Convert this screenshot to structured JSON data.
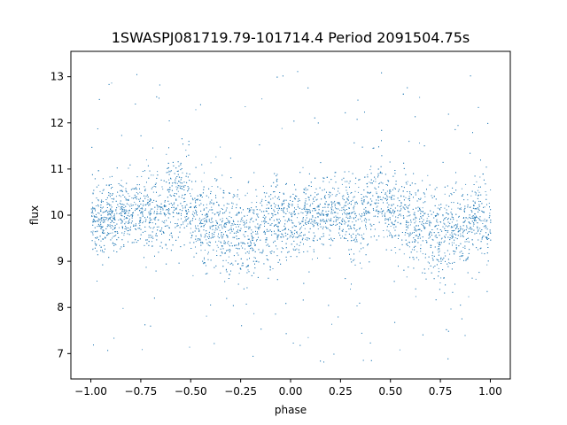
{
  "chart_data": {
    "type": "scatter",
    "title": "1SWASPJ081719.79-101714.4 Period 2091504.75s",
    "xlabel": "phase",
    "ylabel": "flux",
    "xlim": [
      -1.1,
      1.1
    ],
    "ylim": [
      6.45,
      13.55
    ],
    "x_ticks": [
      -1.0,
      -0.75,
      -0.5,
      -0.25,
      0.0,
      0.25,
      0.5,
      0.75,
      1.0
    ],
    "x_tick_labels": [
      "−1.00",
      "−0.75",
      "−0.50",
      "−0.25",
      "0.00",
      "0.25",
      "0.50",
      "0.75",
      "1.00"
    ],
    "y_ticks": [
      7,
      8,
      9,
      10,
      11,
      12,
      13
    ],
    "y_tick_labels": [
      "7",
      "8",
      "9",
      "10",
      "11",
      "12",
      "13"
    ],
    "grid": false,
    "marker_color": "#1f77b4",
    "series": [
      {
        "approximate_profile": {
          "phase": [
            0.0,
            0.05,
            0.1,
            0.15,
            0.2,
            0.25,
            0.3,
            0.35,
            0.4,
            0.45,
            0.5,
            0.55,
            0.6,
            0.65,
            0.7,
            0.75,
            0.8,
            0.85,
            0.9,
            0.95,
            1.0
          ],
          "median_flux": [
            9.8,
            9.9,
            10.0,
            10.1,
            10.1,
            10.1,
            10.0,
            10.1,
            10.3,
            10.5,
            10.0,
            9.9,
            9.8,
            9.8,
            9.6,
            9.5,
            9.6,
            9.7,
            9.9,
            10.0,
            9.8
          ],
          "flux_spread": [
            0.7,
            0.7,
            0.7,
            0.7,
            0.7,
            0.6,
            0.8,
            0.8,
            0.9,
            0.9,
            0.8,
            0.8,
            0.9,
            0.9,
            0.9,
            0.9,
            0.9,
            0.8,
            0.8,
            0.8,
            0.7
          ]
        },
        "x_range": [
          -1.0,
          1.0
        ],
        "y_range": [
          6.75,
          13.2
        ]
      }
    ]
  }
}
